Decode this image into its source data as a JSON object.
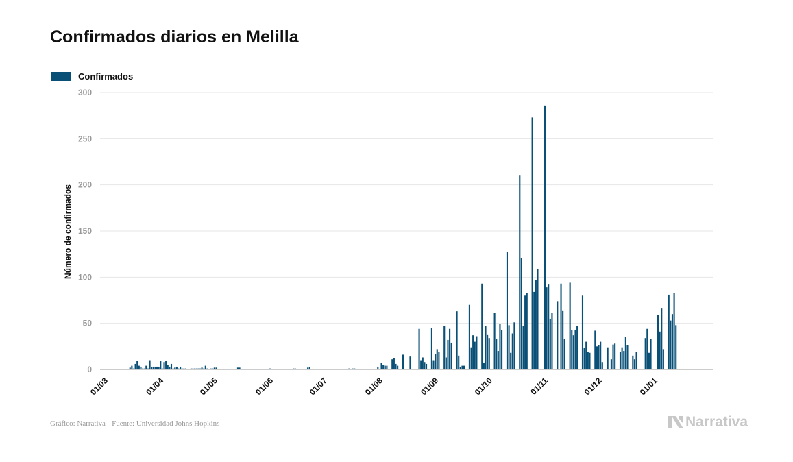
{
  "chart_data": {
    "type": "bar",
    "title": "Confirmados diarios en Melilla",
    "legend": [
      "Confirmados"
    ],
    "ylabel": "Número de confirmados",
    "xlabel": "",
    "ylim": [
      0,
      300
    ],
    "yticks": [
      0,
      50,
      100,
      150,
      200,
      250,
      300
    ],
    "xticks": [
      {
        "label": "01/03",
        "day": 0
      },
      {
        "label": "01/04",
        "day": 31
      },
      {
        "label": "01/05",
        "day": 61
      },
      {
        "label": "01/06",
        "day": 92
      },
      {
        "label": "01/07",
        "day": 122
      },
      {
        "label": "01/08",
        "day": 153
      },
      {
        "label": "01/09",
        "day": 184
      },
      {
        "label": "01/10",
        "day": 214
      },
      {
        "label": "01/11",
        "day": 245
      },
      {
        "label": "01/12",
        "day": 275
      },
      {
        "label": "01/01",
        "day": 306
      }
    ],
    "day_count": 330,
    "series": [
      {
        "name": "Confirmados",
        "color": "#0a4f76",
        "start_date": "01/03",
        "values": [
          0,
          0,
          0,
          0,
          0,
          0,
          0,
          0,
          0,
          0,
          0,
          0,
          0,
          0,
          2,
          4,
          1,
          6,
          9,
          4,
          3,
          1,
          1,
          4,
          1,
          10,
          3,
          3,
          3,
          3,
          3,
          9,
          1,
          8,
          9,
          5,
          3,
          6,
          1,
          2,
          3,
          1,
          3,
          1,
          1,
          1,
          0,
          0,
          1,
          1,
          1,
          1,
          1,
          1,
          2,
          1,
          4,
          1,
          0,
          1,
          1,
          2,
          2,
          0,
          0,
          0,
          0,
          0,
          0,
          0,
          0,
          0,
          0,
          0,
          2,
          2,
          0,
          0,
          0,
          0,
          0,
          0,
          0,
          0,
          0,
          0,
          0,
          0,
          0,
          0,
          0,
          0,
          1,
          0,
          0,
          0,
          0,
          0,
          0,
          0,
          0,
          0,
          0,
          0,
          0,
          1,
          1,
          0,
          0,
          0,
          0,
          0,
          0,
          2,
          3,
          0,
          0,
          0,
          0,
          0,
          0,
          0,
          0,
          0,
          0,
          0,
          0,
          0,
          0,
          0,
          0,
          0,
          0,
          0,
          0,
          0,
          1,
          0,
          1,
          1,
          0,
          0,
          0,
          0,
          0,
          0,
          0,
          0,
          0,
          0,
          0,
          0,
          3,
          0,
          7,
          5,
          4,
          4,
          0,
          0,
          11,
          12,
          6,
          4,
          0,
          0,
          16,
          0,
          0,
          0,
          14,
          0,
          0,
          0,
          0,
          44,
          10,
          13,
          8,
          6,
          0,
          0,
          45,
          10,
          17,
          22,
          19,
          0,
          0,
          47,
          13,
          32,
          44,
          29,
          0,
          0,
          63,
          15,
          3,
          4,
          4,
          0,
          0,
          70,
          24,
          37,
          30,
          36,
          0,
          0,
          93,
          7,
          47,
          38,
          34,
          0,
          0,
          61,
          33,
          20,
          49,
          43,
          0,
          0,
          127,
          48,
          18,
          39,
          51,
          0,
          0,
          210,
          121,
          47,
          80,
          83,
          0,
          0,
          273,
          84,
          97,
          109,
          0,
          0,
          0,
          286,
          89,
          92,
          55,
          61,
          0,
          0,
          74,
          0,
          93,
          64,
          33,
          0,
          0,
          94,
          43,
          37,
          43,
          47,
          0,
          0,
          80,
          23,
          30,
          19,
          18,
          0,
          0,
          42,
          25,
          26,
          30,
          8,
          0,
          0,
          24,
          0,
          11,
          27,
          28,
          0,
          0,
          19,
          24,
          20,
          35,
          26,
          0,
          0,
          15,
          11,
          19,
          0,
          0,
          0,
          0,
          34,
          44,
          18,
          33,
          0,
          0,
          0,
          59,
          41,
          66,
          22,
          0,
          0,
          81,
          53,
          60,
          83,
          48
        ]
      }
    ]
  },
  "footer": {
    "source": "Gráfico: Narrativa - Fuente: Universidad Johns Hopkins",
    "logo_text": "Narrativa"
  }
}
